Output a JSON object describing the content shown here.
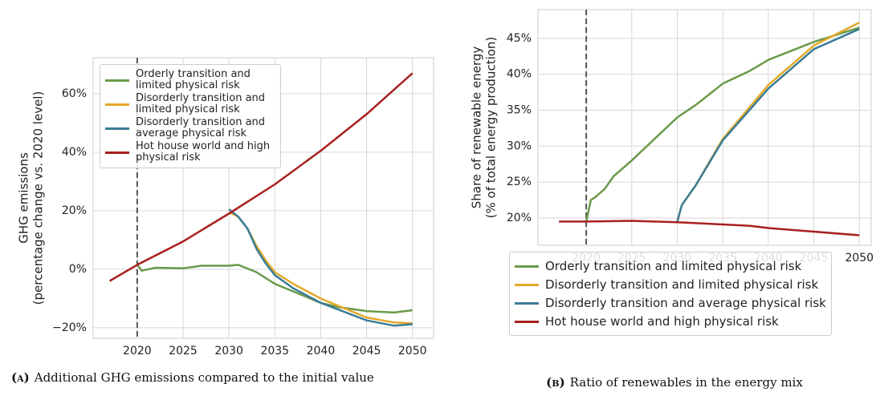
{
  "chart_data": [
    {
      "type": "line",
      "ylabel": [
        "GHG emissions",
        "(percentage change vs. 2020 level)"
      ],
      "xlim": [
        2015.2,
        2052.3
      ],
      "ylim": [
        -23.6,
        72.3
      ],
      "xticks": [
        2020,
        2025,
        2030,
        2035,
        2040,
        2045,
        2050
      ],
      "yticks": [
        {
          "value": -20,
          "label": "−20%"
        },
        {
          "value": 0,
          "label": "0%"
        },
        {
          "value": 20,
          "label": "20%"
        },
        {
          "value": 40,
          "label": "40%"
        },
        {
          "value": 60,
          "label": "60%"
        }
      ],
      "grid": true,
      "vline": 2020,
      "legend": "upper left",
      "caption": {
        "label": "(a)",
        "text": "Additional GHG emissions compared to the initial value"
      },
      "series": [
        {
          "name": "Orderly transition and limited physical risk",
          "color": "#6a9a4a",
          "x": [
            2020,
            2020.5,
            2022,
            2025,
            2027,
            2030,
            2031,
            2033,
            2035,
            2040,
            2042,
            2045,
            2048,
            2050
          ],
          "values": [
            1.5,
            -0.5,
            0.5,
            0.3,
            1.2,
            1.2,
            1.5,
            -1,
            -5,
            -11.5,
            -13,
            -14.3,
            -14.8,
            -14
          ]
        },
        {
          "name": "Disorderly transition and limited physical risk",
          "color": "#e3a92a",
          "x": [
            2030,
            2031,
            2032,
            2033,
            2034,
            2035,
            2037,
            2040,
            2045,
            2048,
            2050
          ],
          "values": [
            19.5,
            18,
            14,
            8,
            3,
            -1,
            -5,
            -10,
            -16.5,
            -18.2,
            -18.5
          ]
        },
        {
          "name": "Disorderly transition and average physical risk",
          "color": "#3a7c95",
          "x": [
            2030,
            2031,
            2032,
            2033,
            2034,
            2035,
            2037,
            2040,
            2045,
            2048,
            2050
          ],
          "values": [
            20.5,
            18,
            14,
            7,
            2,
            -2,
            -6.5,
            -11.5,
            -17.5,
            -19.3,
            -18.8
          ]
        },
        {
          "name": "Hot house world and high physical risk",
          "color": "#a8201e",
          "x": [
            2017,
            2020,
            2025,
            2030,
            2035,
            2040,
            2045,
            2050
          ],
          "values": [
            -4,
            1.5,
            9.5,
            19,
            29,
            40.5,
            53,
            67
          ]
        }
      ]
    },
    {
      "type": "line",
      "ylabel": [
        "Share of renewable energy",
        "(% of total energy production)"
      ],
      "xlim": [
        2014.7,
        2051.3
      ],
      "ylim": [
        16.2,
        49
      ],
      "xticks": [
        2020,
        2025,
        2030,
        2035,
        2040,
        2045,
        2050
      ],
      "yticks": [
        {
          "value": 20,
          "label": "20%"
        },
        {
          "value": 25,
          "label": "25%"
        },
        {
          "value": 30,
          "label": "30%"
        },
        {
          "value": 35,
          "label": "35%"
        },
        {
          "value": 40,
          "label": "40%"
        },
        {
          "value": 45,
          "label": "45%"
        }
      ],
      "grid": true,
      "vline": 2020,
      "legend": "below",
      "caption": {
        "label": "(b)",
        "text": "Ratio of renewables in the energy mix"
      },
      "series": [
        {
          "name": "Orderly transition and limited physical risk",
          "color": "#6a9a4a",
          "x": [
            2020,
            2020.5,
            2021,
            2022,
            2023,
            2025,
            2030,
            2032,
            2035,
            2038,
            2040,
            2045,
            2050
          ],
          "values": [
            19.5,
            22.5,
            22.9,
            24,
            25.8,
            28,
            34,
            35.7,
            38.7,
            40.5,
            42,
            44.5,
            46.5
          ]
        },
        {
          "name": "Disorderly transition and limited physical risk",
          "color": "#e3a92a",
          "x": [
            2030,
            2030.5,
            2032,
            2035,
            2040,
            2045,
            2050
          ],
          "values": [
            19.5,
            21.8,
            24.5,
            31,
            38.5,
            44,
            47.2
          ]
        },
        {
          "name": "Disorderly transition and average physical risk",
          "color": "#3a7c95",
          "x": [
            2030,
            2030.5,
            2032,
            2035,
            2040,
            2045,
            2050
          ],
          "values": [
            19.5,
            21.8,
            24.5,
            30.8,
            38,
            43.5,
            46.3
          ]
        },
        {
          "name": "Hot house world and high physical risk",
          "color": "#a8201e",
          "x": [
            2017,
            2020,
            2025,
            2030,
            2035,
            2038,
            2040,
            2045,
            2050
          ],
          "values": [
            19.5,
            19.5,
            19.6,
            19.4,
            19.1,
            18.9,
            18.6,
            18.1,
            17.6
          ]
        }
      ]
    }
  ]
}
